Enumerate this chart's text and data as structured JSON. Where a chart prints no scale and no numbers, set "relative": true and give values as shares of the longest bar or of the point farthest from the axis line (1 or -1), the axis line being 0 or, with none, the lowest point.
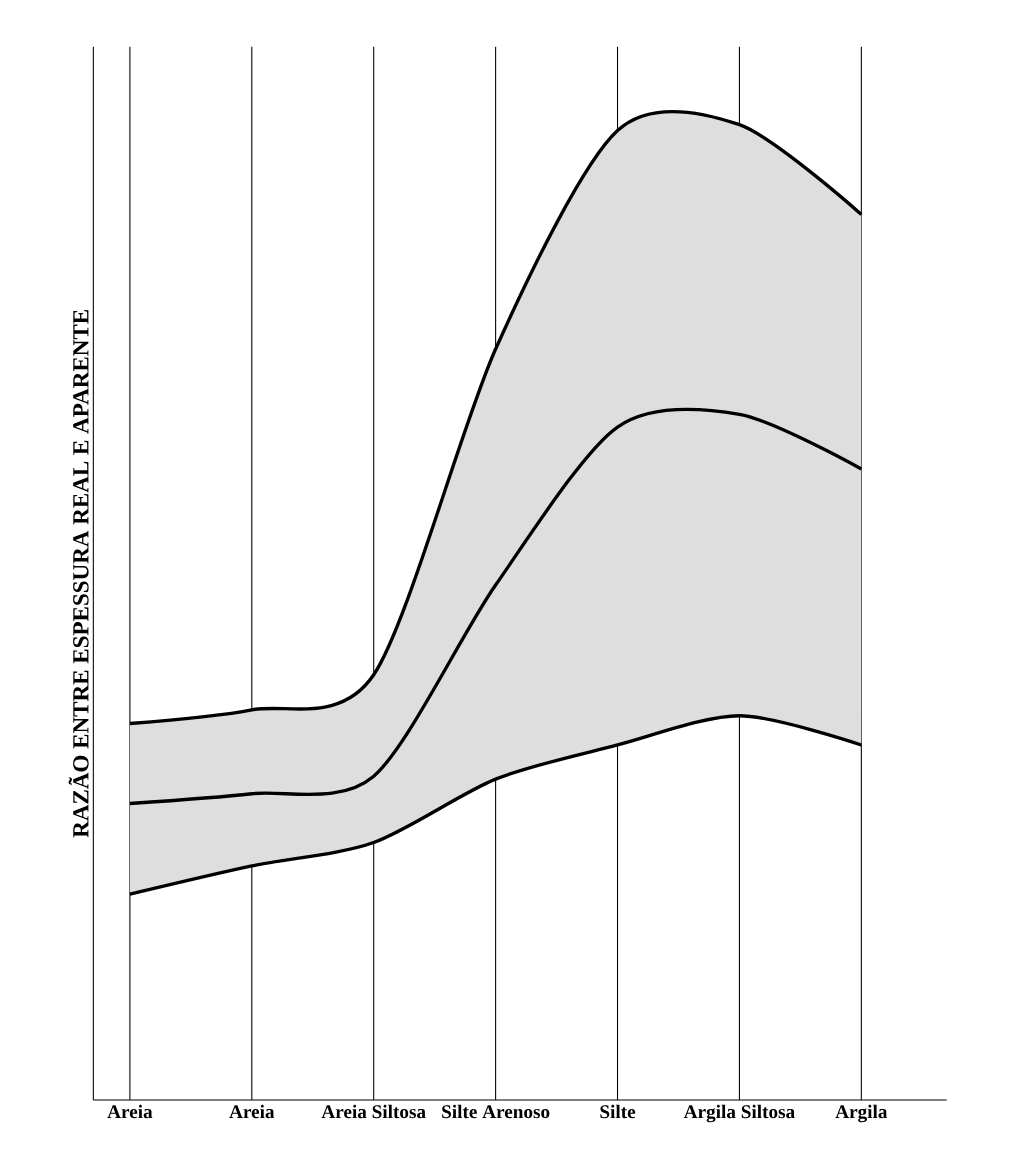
{
  "chart_data": {
    "type": "line",
    "relative": true,
    "grid": "x",
    "ylabel": "RAZÃO ENTRE ESPESSURA REAL E APARENTE",
    "categories": [
      "Areia",
      "Areia",
      "Areia Siltosa",
      "Silte Arenoso",
      "Silte",
      "Argila Siltosa",
      "Argila"
    ],
    "series": [
      {
        "color": "#000000",
        "values": [
          0.386,
          0.4,
          0.436,
          0.77,
          0.994,
          1.0,
          0.908
        ]
      },
      {
        "color": "#000000",
        "values": [
          0.304,
          0.314,
          0.332,
          0.528,
          0.69,
          0.703,
          0.647
        ],
        "lower": [
          0.211,
          0.24,
          0.264,
          0.329,
          0.364,
          0.394,
          0.364
        ],
        "upper": [
          0.386,
          0.4,
          0.436,
          0.77,
          0.994,
          1.0,
          0.908
        ]
      },
      {
        "color": "#000000",
        "values": [
          0.211,
          0.24,
          0.264,
          0.329,
          0.364,
          0.394,
          0.364
        ]
      }
    ]
  }
}
